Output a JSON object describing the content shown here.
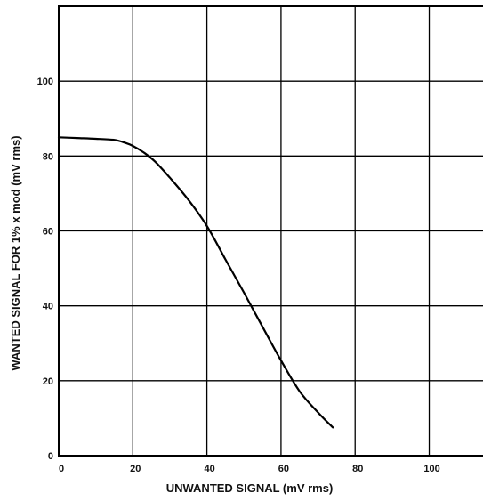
{
  "chart_data": {
    "type": "line",
    "xlabel": "UNWANTED SIGNAL (mV rms)",
    "ylabel": "WANTED SIGNAL FOR 1% x mod (mV rms)",
    "xlim": [
      0,
      115
    ],
    "ylim": [
      0,
      120
    ],
    "x_ticks": [
      0,
      20,
      40,
      60,
      80,
      100
    ],
    "x_tick_labels": [
      "0",
      "20",
      "40",
      "60",
      "80",
      "100"
    ],
    "y_ticks": [
      0,
      20,
      40,
      60,
      80,
      100
    ],
    "y_tick_labels": [
      "0",
      "20",
      "40",
      "60",
      "80",
      "100"
    ],
    "grid": true,
    "series": [
      {
        "x": [
          0,
          5,
          10,
          15,
          18,
          20,
          23,
          26,
          30,
          35,
          40,
          45,
          50,
          55,
          60,
          65,
          70,
          74
        ],
        "y": [
          85,
          84.8,
          84.6,
          84.3,
          83.5,
          82.7,
          80.9,
          78.5,
          74.2,
          68.3,
          61.3,
          52.4,
          43.5,
          34.4,
          25.4,
          17.2,
          11.5,
          7.5
        ]
      }
    ],
    "line_color": "#000000"
  }
}
